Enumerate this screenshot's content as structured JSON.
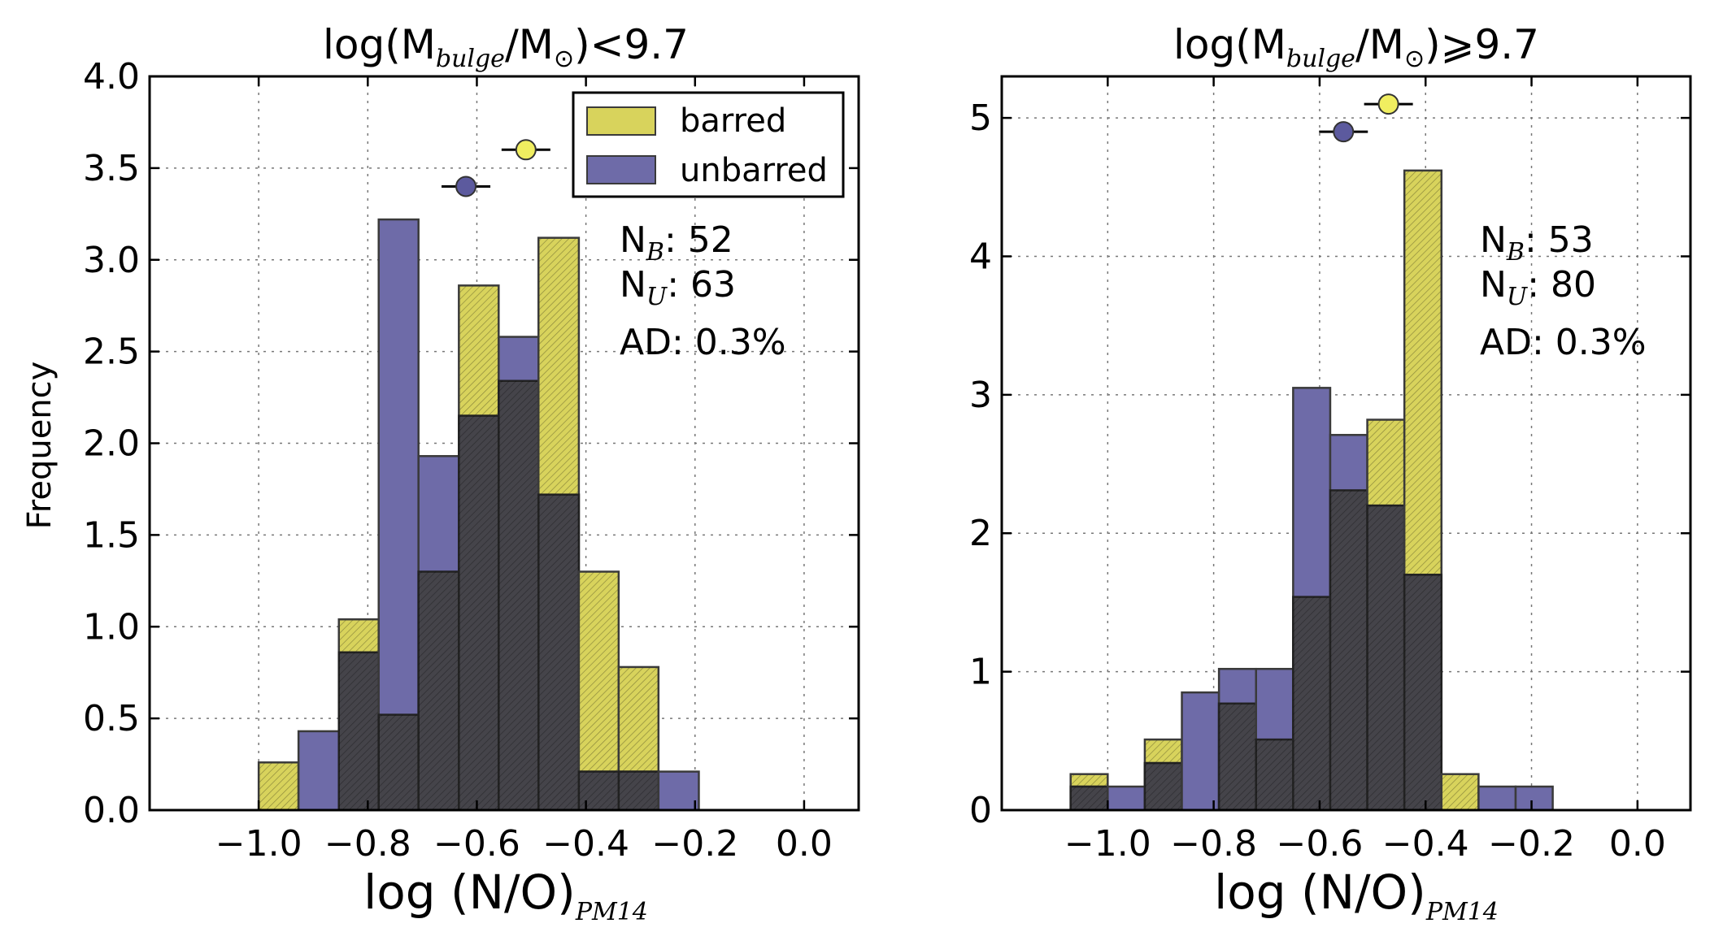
{
  "colors": {
    "barred": "#d8d35c",
    "unbarred": "#6e6ba8",
    "overlap": "#45444a",
    "edge": "#3a3a3a",
    "marker_barred": "#f0ee60",
    "marker_unbarred": "#5c5a9e"
  },
  "legend": {
    "barred": "barred",
    "unbarred": "unbarred"
  },
  "ylabel": "Frequency",
  "xlabel": {
    "main": "log (N/O)",
    "sub": "PM14"
  },
  "chart_data": [
    {
      "type": "bar",
      "title": {
        "pre": "log(M",
        "sub1": "bulge",
        "mid": "/M",
        "sun": "⊙",
        "post": ")<9.7"
      },
      "ylim": [
        0,
        4.0
      ],
      "xlim": [
        -1.2,
        0.1
      ],
      "yticks": [
        "0.0",
        "0.5",
        "1.0",
        "1.5",
        "2.0",
        "2.5",
        "3.0",
        "3.5",
        "4.0"
      ],
      "ytick_values": [
        0,
        0.5,
        1.0,
        1.5,
        2.0,
        2.5,
        3.0,
        3.5,
        4.0
      ],
      "xticks": [
        "−1.0",
        "−0.8",
        "−0.6",
        "−0.4",
        "−0.2",
        "0.0"
      ],
      "xtick_values": [
        -1.0,
        -0.8,
        -0.6,
        -0.4,
        -0.2,
        0.0
      ],
      "bin_edges": [
        -1.0,
        -0.927,
        -0.853,
        -0.78,
        -0.707,
        -0.633,
        -0.56,
        -0.487,
        -0.413,
        -0.34,
        -0.267,
        -0.193
      ],
      "series": [
        {
          "name": "barred",
          "values": [
            0.26,
            0,
            1.04,
            0.52,
            1.3,
            2.86,
            2.34,
            3.12,
            1.3,
            0.78,
            0
          ]
        },
        {
          "name": "unbarred",
          "values": [
            0,
            0.43,
            0.86,
            3.22,
            1.93,
            2.15,
            2.58,
            1.72,
            0.21,
            0.21,
            0.21
          ]
        }
      ],
      "means": {
        "barred": {
          "x": -0.51,
          "y": 3.6
        },
        "unbarred": {
          "x": -0.62,
          "y": 3.4
        }
      },
      "grid": true,
      "legend_position": "top-right",
      "annotations": {
        "nb_label": "N",
        "nb_sub": "B",
        "nb_value": ": 52",
        "nu_label": "N",
        "nu_sub": "U",
        "nu_value": ": 63",
        "ad": "AD: 0.3%"
      }
    },
    {
      "type": "bar",
      "title": {
        "pre": "log(M",
        "sub1": "bulge",
        "mid": "/M",
        "sun": "⊙",
        "post": ")⩾9.7"
      },
      "ylim": [
        0,
        5.3
      ],
      "xlim": [
        -1.2,
        0.1
      ],
      "yticks": [
        "0",
        "1",
        "2",
        "3",
        "4",
        "5"
      ],
      "ytick_values": [
        0,
        1,
        2,
        3,
        4,
        5
      ],
      "xticks": [
        "−1.0",
        "−0.8",
        "−0.6",
        "−0.4",
        "−0.2",
        "0.0"
      ],
      "xtick_values": [
        -1.0,
        -0.8,
        -0.6,
        -0.4,
        -0.2,
        0.0
      ],
      "bin_edges": [
        -1.07,
        -1.0,
        -0.93,
        -0.86,
        -0.79,
        -0.72,
        -0.65,
        -0.58,
        -0.51,
        -0.44,
        -0.37,
        -0.3,
        -0.23,
        -0.16,
        -0.09
      ],
      "series": [
        {
          "name": "barred",
          "values": [
            0.26,
            0,
            0.51,
            0,
            0.77,
            0.51,
            1.54,
            2.31,
            2.82,
            4.62,
            0.26,
            0,
            0
          ]
        },
        {
          "name": "unbarred",
          "values": [
            0.17,
            0.17,
            0.34,
            0.85,
            1.02,
            1.02,
            3.05,
            2.71,
            2.2,
            1.7,
            0,
            0.17,
            0.17
          ]
        }
      ],
      "means": {
        "barred": {
          "x": -0.47,
          "y": 5.1
        },
        "unbarred": {
          "x": -0.555,
          "y": 4.9
        }
      },
      "grid": true,
      "legend_position": "none",
      "annotations": {
        "nb_label": "N",
        "nb_sub": "B",
        "nb_value": ": 53",
        "nu_label": "N",
        "nu_sub": "U",
        "nu_value": ": 80",
        "ad": "AD: 0.3%"
      }
    }
  ]
}
